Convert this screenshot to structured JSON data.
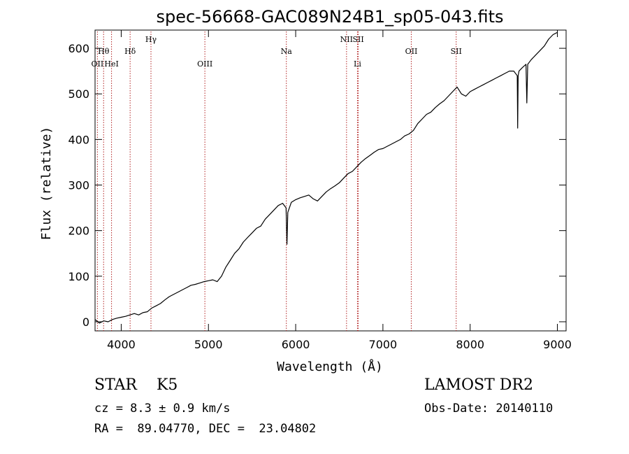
{
  "chart_data": {
    "type": "line",
    "title": "spec-56668-GAC089N24B1_sp05-043.fits",
    "xlabel": "Wavelength (Å)",
    "ylabel": "Flux (relative)",
    "xlim": [
      3700,
      9100
    ],
    "ylim": [
      -20,
      640
    ],
    "xticks": [
      4000,
      5000,
      6000,
      7000,
      8000,
      9000
    ],
    "yticks": [
      0,
      100,
      200,
      300,
      400,
      500,
      600
    ],
    "grid": false,
    "line_color": "#000000",
    "marker_color": "#b22222",
    "series": [
      {
        "x": [
          3700,
          3750,
          3800,
          3850,
          3900,
          3950,
          4000,
          4050,
          4100,
          4150,
          4200,
          4250,
          4300,
          4350,
          4400,
          4450,
          4500,
          4550,
          4600,
          4650,
          4700,
          4750,
          4800,
          4850,
          4900,
          4950,
          5000,
          5050,
          5100,
          5150,
          5200,
          5250,
          5300,
          5350,
          5400,
          5450,
          5500,
          5550,
          5600,
          5650,
          5700,
          5750,
          5800,
          5850,
          5890,
          5900,
          5910,
          5950,
          6000,
          6050,
          6100,
          6150,
          6200,
          6250,
          6300,
          6350,
          6400,
          6450,
          6500,
          6550,
          6600,
          6650,
          6700,
          6750,
          6800,
          6850,
          6900,
          6950,
          7000,
          7050,
          7100,
          7150,
          7200,
          7250,
          7300,
          7350,
          7400,
          7450,
          7500,
          7550,
          7600,
          7650,
          7700,
          7750,
          7800,
          7850,
          7900,
          7950,
          8000,
          8050,
          8100,
          8150,
          8200,
          8250,
          8300,
          8350,
          8400,
          8450,
          8500,
          8540,
          8545,
          8550,
          8560,
          8600,
          8640,
          8650,
          8660,
          8700,
          8750,
          8800,
          8850,
          8900,
          8950,
          9000
        ],
        "y": [
          5,
          -3,
          2,
          0,
          5,
          8,
          10,
          12,
          15,
          18,
          15,
          20,
          22,
          30,
          35,
          40,
          48,
          55,
          60,
          65,
          70,
          75,
          80,
          82,
          85,
          88,
          90,
          92,
          88,
          100,
          120,
          135,
          150,
          160,
          175,
          185,
          195,
          205,
          210,
          225,
          235,
          245,
          255,
          260,
          250,
          170,
          240,
          262,
          268,
          272,
          275,
          278,
          270,
          265,
          275,
          285,
          292,
          298,
          305,
          315,
          325,
          330,
          340,
          350,
          358,
          365,
          372,
          378,
          380,
          385,
          390,
          395,
          400,
          408,
          412,
          420,
          435,
          445,
          455,
          460,
          470,
          478,
          485,
          495,
          505,
          515,
          500,
          495,
          505,
          510,
          515,
          520,
          525,
          530,
          535,
          540,
          545,
          550,
          550,
          540,
          425,
          540,
          550,
          558,
          565,
          480,
          565,
          575,
          585,
          595,
          605,
          620,
          630,
          635
        ]
      }
    ],
    "line_markers": [
      {
        "label": "Hθ",
        "x": 3798,
        "row": 1
      },
      {
        "label": "OII",
        "x": 3727,
        "row": 2
      },
      {
        "label": "HeI",
        "x": 3889,
        "row": 2
      },
      {
        "label": "Hδ",
        "x": 4102,
        "row": 1
      },
      {
        "label": "Hγ",
        "x": 4341,
        "row": 0
      },
      {
        "label": "OIII",
        "x": 4959,
        "row": 2
      },
      {
        "label": "Na",
        "x": 5893,
        "row": 1
      },
      {
        "label": "NII",
        "x": 6583,
        "row": 0
      },
      {
        "label": "SII",
        "x": 6717,
        "row": 0
      },
      {
        "label": "Li",
        "x": 6708,
        "row": 2
      },
      {
        "label": "OII",
        "x": 7325,
        "row": 1
      },
      {
        "label": "SII",
        "x": 7840,
        "row": 1
      }
    ]
  },
  "info": {
    "class_label": "STAR    K5",
    "survey_label": "LAMOST DR2",
    "cz_label": "cz = 8.3 ± 0.9 km/s",
    "obs_date_label": "Obs-Date: 20140110",
    "coords_label": "RA =  89.04770, DEC =  23.04802"
  }
}
